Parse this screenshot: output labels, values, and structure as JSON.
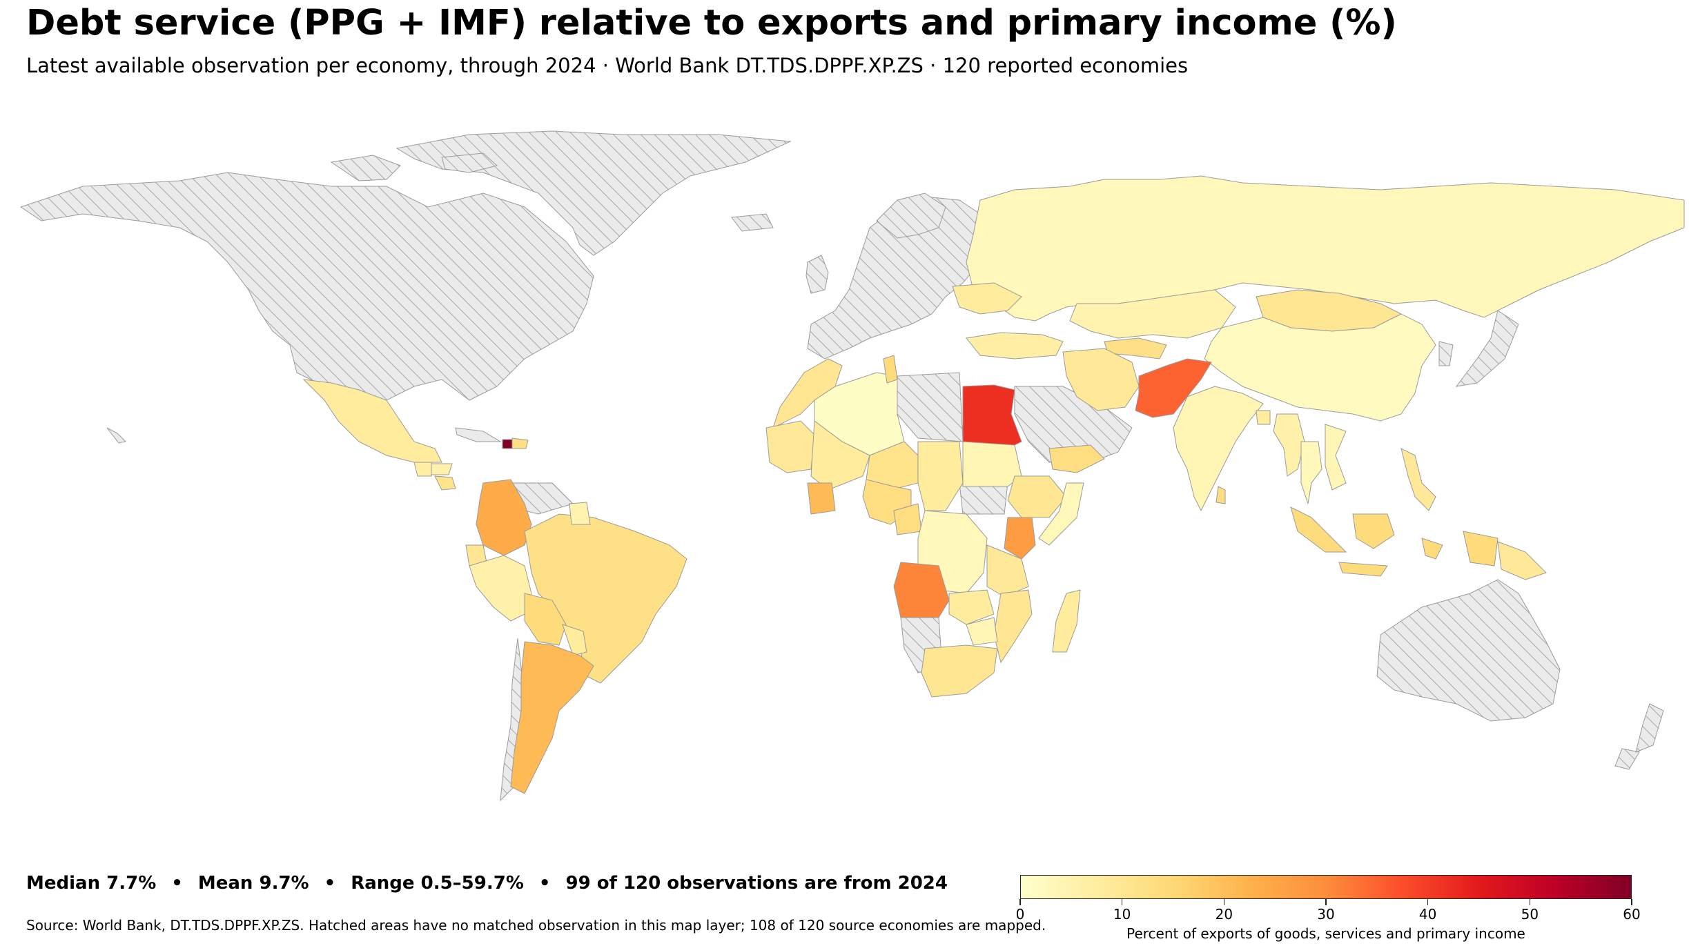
{
  "title": "Debt service (PPG + IMF) relative to exports and primary income (%)",
  "subtitle": "Latest available observation per economy, through 2024 · World Bank DT.TDS.DPPF.XP.ZS · 120 reported economies",
  "stats": {
    "median": "Median 7.7%",
    "mean": "Mean 9.7%",
    "range": "Range 0.5–59.7%",
    "recency": "99 of 120 observations are from 2024",
    "separator": "•"
  },
  "source": "Source: World Bank, DT.TDS.DPPF.XP.ZS. Hatched areas have no matched observation in this map layer; 108 of 120 source economies are mapped.",
  "legend": {
    "title": "Percent of exports of goods, services and primary income",
    "min": 0,
    "max": 60,
    "ticks": [
      "0",
      "10",
      "20",
      "30",
      "40",
      "50",
      "60"
    ],
    "colormap": [
      "#ffffcc",
      "#ffeda0",
      "#fed976",
      "#feb24c",
      "#fd8d3c",
      "#fc4e2a",
      "#e31a1c",
      "#bd0026",
      "#800026"
    ]
  },
  "no_data": {
    "fill": "#ebebeb",
    "hatch": "#a0a0a0"
  },
  "regions": [
    {
      "name": "Mexico",
      "value": 8
    },
    {
      "name": "Guatemala",
      "value": 7
    },
    {
      "name": "Honduras",
      "value": 6
    },
    {
      "name": "Costa Rica",
      "value": 11
    },
    {
      "name": "Haiti",
      "value": 59.7
    },
    {
      "name": "Dominican Republic",
      "value": 13
    },
    {
      "name": "Colombia",
      "value": 24
    },
    {
      "name": "Ecuador",
      "value": 10
    },
    {
      "name": "Peru",
      "value": 6
    },
    {
      "name": "Brazil",
      "value": 12
    },
    {
      "name": "Bolivia",
      "value": 14
    },
    {
      "name": "Paraguay",
      "value": 8
    },
    {
      "name": "Argentina",
      "value": 21
    },
    {
      "name": "Guyana",
      "value": 5
    },
    {
      "name": "Morocco",
      "value": 10
    },
    {
      "name": "Algeria",
      "value": 1
    },
    {
      "name": "Tunisia",
      "value": 14
    },
    {
      "name": "Egypt",
      "value": 42
    },
    {
      "name": "Mauritania",
      "value": 9
    },
    {
      "name": "Mali",
      "value": 8
    },
    {
      "name": "Niger",
      "value": 11
    },
    {
      "name": "Nigeria",
      "value": 13
    },
    {
      "name": "Chad",
      "value": 8
    },
    {
      "name": "Sudan",
      "value": 4
    },
    {
      "name": "Ethiopia",
      "value": 10
    },
    {
      "name": "Kenya",
      "value": 27
    },
    {
      "name": "Somalia",
      "value": 3
    },
    {
      "name": "Côte d'Ivoire",
      "value": 21
    },
    {
      "name": "Cameroon",
      "value": 13
    },
    {
      "name": "DR Congo",
      "value": 3
    },
    {
      "name": "Tanzania",
      "value": 9
    },
    {
      "name": "Angola",
      "value": 31
    },
    {
      "name": "Zambia",
      "value": 8
    },
    {
      "name": "Mozambique",
      "value": 10
    },
    {
      "name": "Zimbabwe",
      "value": 4
    },
    {
      "name": "South Africa",
      "value": 10
    },
    {
      "name": "Madagascar",
      "value": 8
    },
    {
      "name": "Russia",
      "value": 3
    },
    {
      "name": "Kazakhstan",
      "value": 5
    },
    {
      "name": "Mongolia",
      "value": 10
    },
    {
      "name": "China",
      "value": 2
    },
    {
      "name": "Türkiye",
      "value": 7
    },
    {
      "name": "Iran",
      "value": 9
    },
    {
      "name": "Uzbekistan",
      "value": 12
    },
    {
      "name": "Pakistan",
      "value": 35
    },
    {
      "name": "India",
      "value": 4
    },
    {
      "name": "Bangladesh",
      "value": 8
    },
    {
      "name": "Sri Lanka",
      "value": 13
    },
    {
      "name": "Myanmar",
      "value": 6
    },
    {
      "name": "Thailand",
      "value": 3
    },
    {
      "name": "Vietnam",
      "value": 4
    },
    {
      "name": "Philippines",
      "value": 9
    },
    {
      "name": "Indonesia",
      "value": 14
    },
    {
      "name": "Papua New Guinea",
      "value": 9
    },
    {
      "name": "Yemen",
      "value": 13
    },
    {
      "name": "Ukraine",
      "value": 8
    }
  ]
}
